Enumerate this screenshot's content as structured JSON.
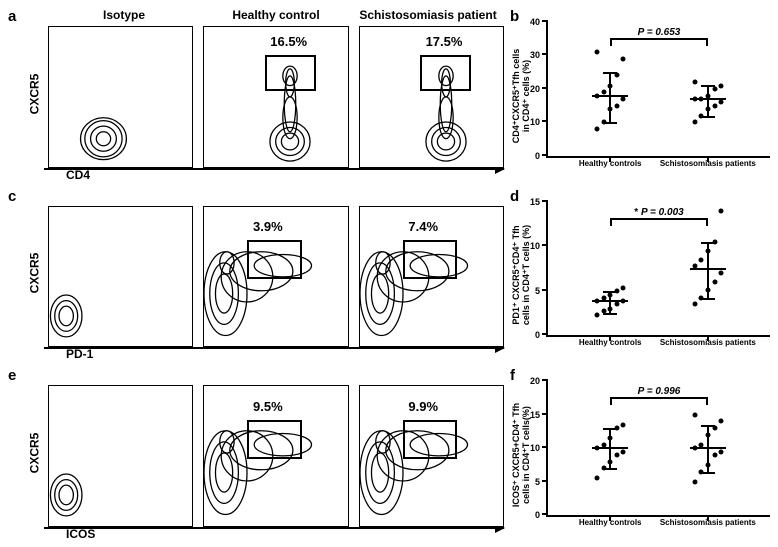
{
  "colors": {
    "line": "#000000",
    "background": "#ffffff",
    "marker": "#000000"
  },
  "column_headers": [
    "Isotype",
    "Healthy control",
    "Schistosomiasis patient"
  ],
  "rows": [
    {
      "left_label": "a",
      "right_label": "b",
      "y_axis": "CXCR5",
      "x_axis": "CD4",
      "variant": "a",
      "plots": [
        {
          "gate_pct": null,
          "show_gate": false
        },
        {
          "gate_pct": "16.5%",
          "show_gate": true
        },
        {
          "gate_pct": "17.5%",
          "show_gate": true
        }
      ],
      "scatter": {
        "ylabel": "CD4⁺CXCR5⁺Tfh cells\nin CD4⁺ cells (%)",
        "ylim": [
          0,
          40
        ],
        "ytick_step": 10,
        "p_text": "P = 0.653",
        "p_star": "",
        "categories": [
          "Healthy controls",
          "Schistosomiasis patients"
        ],
        "groups": [
          {
            "median": 18,
            "low": 10,
            "high": 25,
            "points": [
              8,
              10,
              14,
              15,
              17,
              18,
              19,
              21,
              24,
              29,
              31
            ]
          },
          {
            "median": 17,
            "low": 12,
            "high": 21,
            "points": [
              10,
              12,
              14,
              15,
              16,
              17,
              17,
              18,
              20,
              21,
              22
            ]
          }
        ]
      }
    },
    {
      "left_label": "c",
      "right_label": "d",
      "y_axis": "CXCR5",
      "x_axis": "PD-1",
      "variant": "c",
      "plots": [
        {
          "gate_pct": null,
          "show_gate": false
        },
        {
          "gate_pct": "3.9%",
          "show_gate": true
        },
        {
          "gate_pct": "7.4%",
          "show_gate": true
        }
      ],
      "scatter": {
        "ylabel": "PD1⁺ CXCR5⁺CD4⁺ Tfh\ncells in CD4⁺T cells (%)",
        "ylim": [
          0,
          15
        ],
        "ytick_step": 5,
        "p_text": "P = 0.003",
        "p_star": "* ",
        "categories": [
          "Healthy controls",
          "Schistosomiasis patients"
        ],
        "groups": [
          {
            "median": 3.9,
            "low": 2.5,
            "high": 5,
            "points": [
              2.3,
              2.7,
              3.0,
              3.5,
              3.8,
              3.9,
              4.2,
              4.5,
              5.0,
              5.3
            ]
          },
          {
            "median": 7.4,
            "low": 4.2,
            "high": 10.5,
            "points": [
              3.5,
              4.2,
              5.1,
              6.0,
              7.0,
              7.8,
              8.5,
              9.5,
              10.5,
              14.0
            ]
          }
        ]
      }
    },
    {
      "left_label": "e",
      "right_label": "f",
      "y_axis": "CXCR5",
      "x_axis": "ICOS",
      "variant": "c",
      "plots": [
        {
          "gate_pct": null,
          "show_gate": false
        },
        {
          "gate_pct": "9.5%",
          "show_gate": true
        },
        {
          "gate_pct": "9.9%",
          "show_gate": true
        }
      ],
      "scatter": {
        "ylabel": "ICOS⁺ CXCR5+CD4⁺ Tfh\ncells in CD4⁺T cells(%)",
        "ylim": [
          0,
          20
        ],
        "ytick_step": 5,
        "p_text": "P = 0.996",
        "p_star": "",
        "categories": [
          "Healthy controls",
          "Schistosomiasis patients"
        ],
        "groups": [
          {
            "median": 10.0,
            "low": 7,
            "high": 13,
            "points": [
              5.5,
              7,
              8,
              9,
              9.5,
              10,
              10.5,
              11.5,
              13,
              13.5
            ]
          },
          {
            "median": 10.0,
            "low": 6.5,
            "high": 13.5,
            "points": [
              5,
              6.5,
              7.5,
              9,
              9.5,
              10,
              10.5,
              12,
              13,
              14,
              15
            ]
          }
        ]
      }
    }
  ]
}
